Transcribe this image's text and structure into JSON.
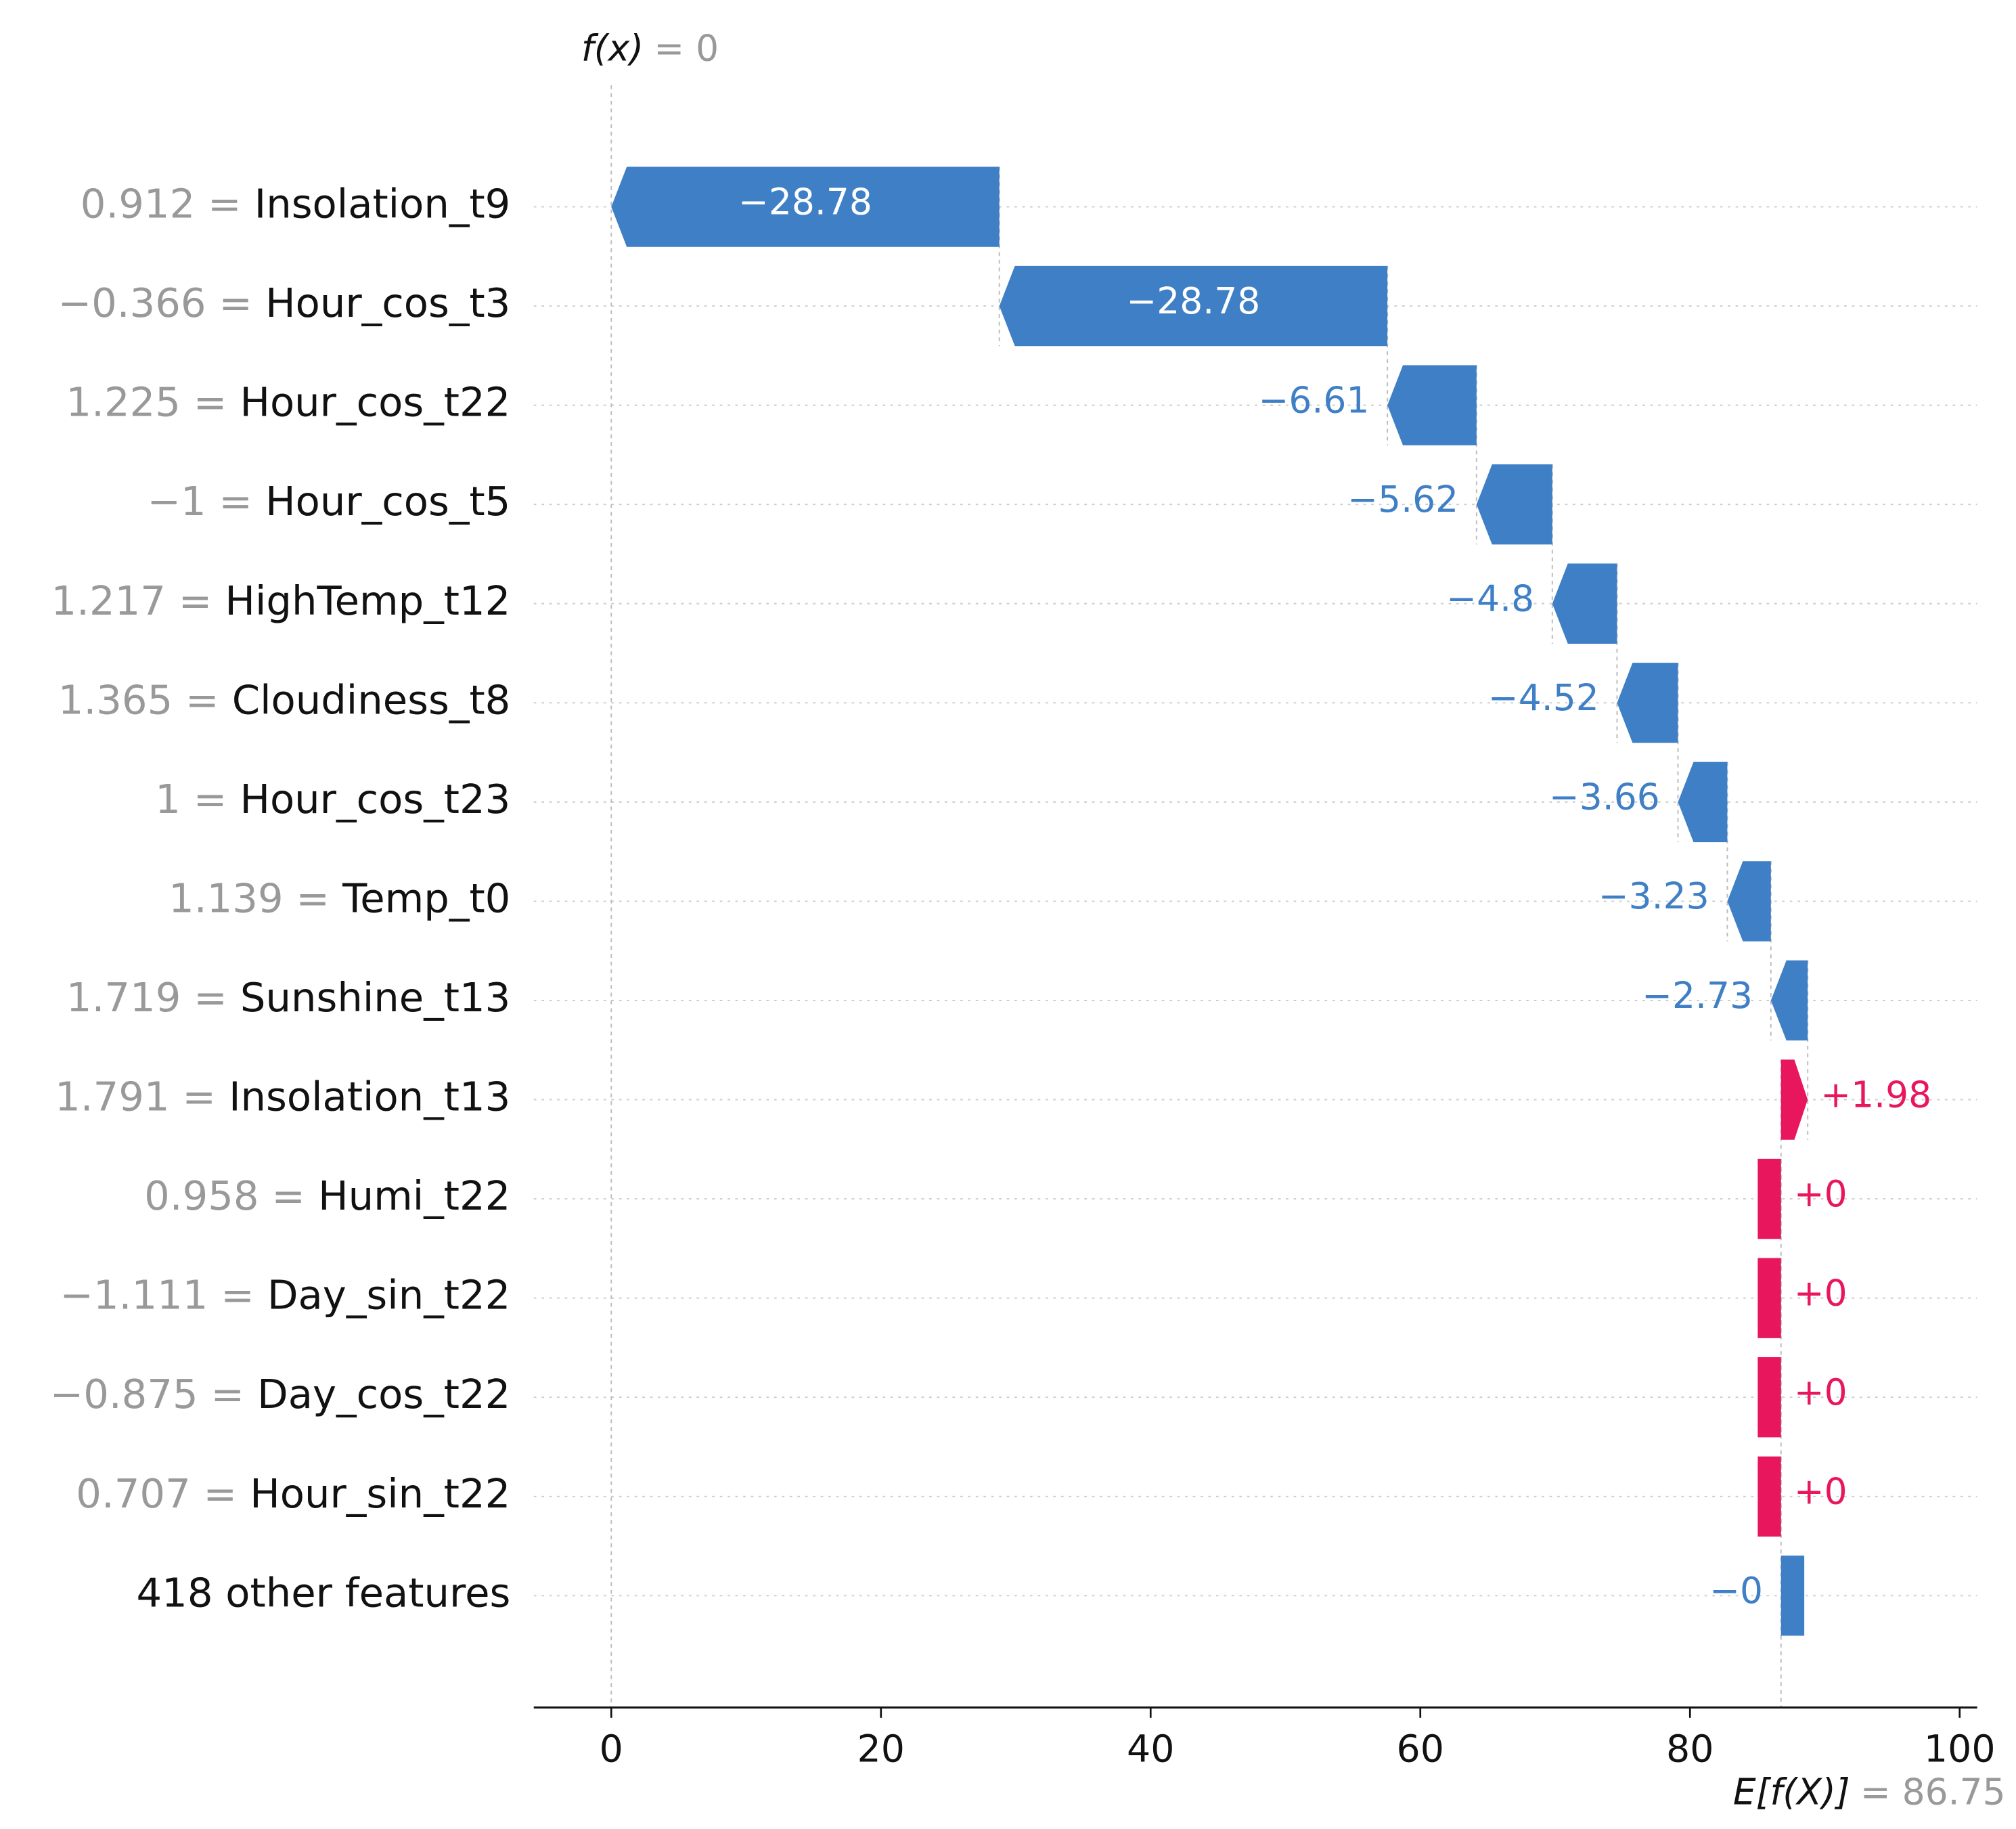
{
  "chart_data": {
    "type": "waterfall",
    "categories": [
      "Insolation_t9",
      "Hour_cos_t3",
      "Hour_cos_t22",
      "Hour_cos_t5",
      "HighTemp_t12",
      "Cloudiness_t8",
      "Hour_cos_t23",
      "Temp_t0",
      "Sunshine_t13",
      "Insolation_t13",
      "Humi_t22",
      "Day_sin_t22",
      "Day_cos_t22",
      "Hour_sin_t22",
      "418 other features"
    ],
    "feature_values": [
      "0.912 =",
      "−0.366 =",
      "1.225 =",
      "−1 =",
      "1.217 =",
      "1.365 =",
      "1 =",
      "1.139 =",
      "1.719 =",
      "1.791 =",
      "0.958 =",
      "−1.111 =",
      "−0.875 =",
      "0.707 =",
      null
    ],
    "values": [
      -28.78,
      -28.78,
      -6.61,
      -5.62,
      -4.8,
      -4.52,
      -3.66,
      -3.23,
      -2.73,
      1.98,
      0,
      0,
      0,
      0,
      0
    ],
    "value_labels": [
      "−28.78",
      "−28.78",
      "−6.61",
      "−5.62",
      "−4.8",
      "−4.52",
      "−3.66",
      "−3.23",
      "−2.73",
      "+1.98",
      "+0",
      "+0",
      "+0",
      "+0",
      "−0"
    ],
    "positive_color": "#e8175d",
    "negative_color": "#3f7fc5",
    "fx": 0,
    "fx_label": "f(x)",
    "fx_value_label": "= 0",
    "base_value": 86.75,
    "base_label": "E[f(X)]",
    "base_value_label": "= 86.75",
    "xlim": [
      -5.75,
      101.3
    ],
    "xticks": [
      0,
      20,
      40,
      60,
      80,
      100
    ]
  }
}
